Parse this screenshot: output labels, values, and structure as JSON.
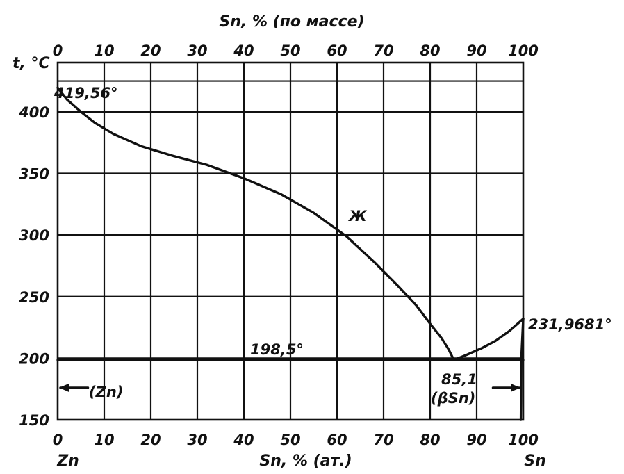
{
  "chart_data": {
    "type": "line",
    "title": "",
    "top_axis_label": "Sn, % (по массе)",
    "bottom_axis_label": "Sn, % (ат.)",
    "y_axis_label": "t, °C",
    "x_ticks": [
      "0",
      "10",
      "20",
      "30",
      "40",
      "50",
      "60",
      "70",
      "80",
      "90",
      "100"
    ],
    "x_top_ticks": [
      "0",
      "10",
      "20",
      "30",
      "40",
      "50",
      "60",
      "70",
      "80",
      "90",
      "100"
    ],
    "y_ticks": [
      "150",
      "200",
      "250",
      "300",
      "350",
      "400"
    ],
    "xlim": [
      0,
      100
    ],
    "ylim": [
      150,
      440
    ],
    "grid": true,
    "left_component": "Zn",
    "right_component": "Sn",
    "series": [
      {
        "name": "liquidus Zn",
        "x": [
          0,
          2,
          5,
          8,
          12,
          18,
          25,
          32,
          40,
          48,
          55,
          62,
          68,
          73,
          77,
          80,
          82.5,
          84,
          85.1
        ],
        "y": [
          419.56,
          410,
          400,
          391,
          382,
          372,
          364,
          357,
          346,
          333,
          318,
          299,
          278,
          259,
          243,
          228,
          216,
          207,
          198.5
        ]
      },
      {
        "name": "liquidus Sn",
        "x": [
          85.1,
          88,
          91,
          94,
          97,
          100
        ],
        "y": [
          198.5,
          203,
          208,
          214,
          222,
          231.9681
        ]
      },
      {
        "name": "eutectic line",
        "x": [
          0,
          100
        ],
        "y": [
          198.5,
          198.5
        ]
      },
      {
        "name": "solvus Sn",
        "x": [
          100,
          99.6,
          99.5
        ],
        "y": [
          231.9681,
          200,
          150
        ]
      }
    ],
    "annotations": {
      "zn_melting": "419,56°",
      "sn_melting": "231,9681°",
      "eutectic_temp": "198,5°",
      "eutectic_comp": "85,1",
      "liquid_region": "Ж",
      "zn_phase": "(Zn)",
      "sn_phase": "(βSn)"
    }
  }
}
